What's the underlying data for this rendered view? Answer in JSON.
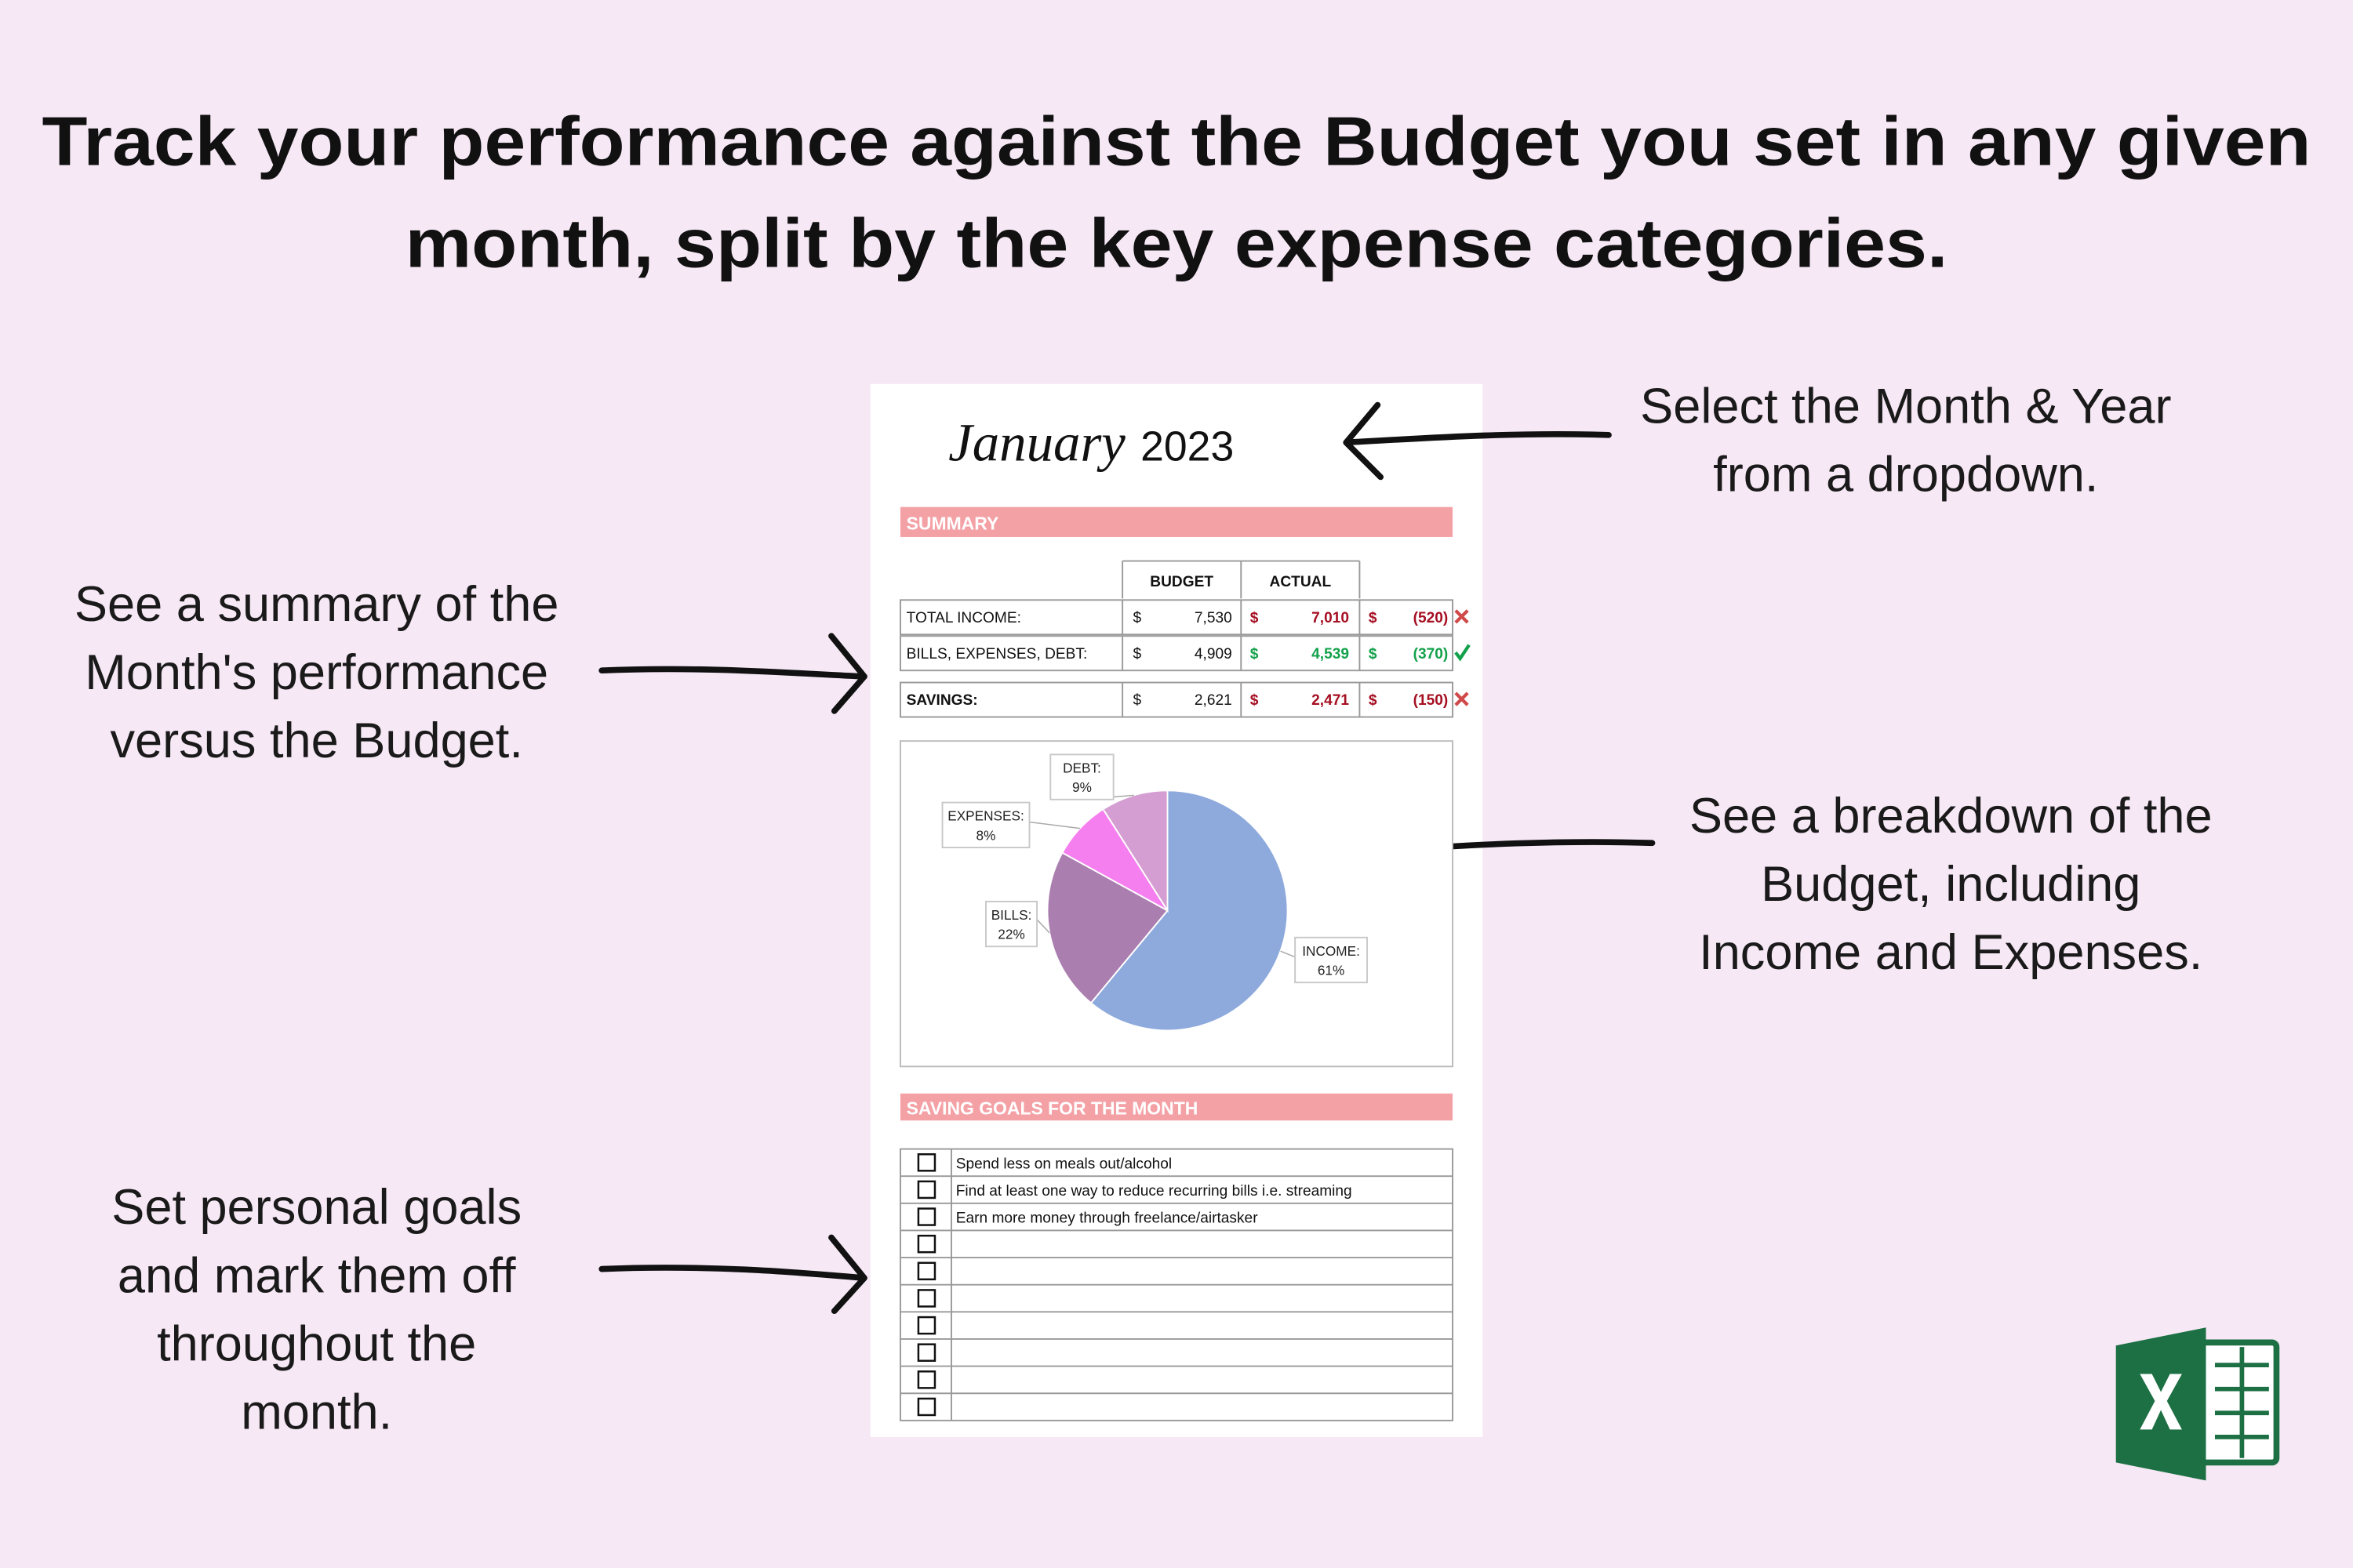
{
  "header": {
    "title_lines": [
      "Track your performance against the Budget you set in any given",
      "month, split by the key expense categories."
    ]
  },
  "callouts": [
    {
      "lines": [
        "Select the Month & Year",
        "from a dropdown."
      ]
    },
    {
      "lines": [
        "See a summary of the",
        "Month's performance",
        "versus the Budget."
      ]
    },
    {
      "lines": [
        "See a breakdown of the",
        "Budget, including",
        "Income and Expenses."
      ]
    },
    {
      "lines": [
        "Set personal goals",
        "and mark them off",
        "throughout the",
        "month."
      ]
    }
  ],
  "sheet": {
    "month": "January",
    "year": "2023",
    "summary": {
      "heading": "SUMMARY",
      "columns": [
        "BUDGET",
        "ACTUAL"
      ],
      "currency": "$",
      "rows": [
        {
          "label": "TOTAL INCOME:",
          "budget": "7,530",
          "actual": "7,010",
          "variance": "(520)",
          "color": "#a50f22"
        },
        {
          "label": "BILLS, EXPENSES, DEBT:",
          "budget": "4,909",
          "actual": "4,539",
          "variance": "(370)",
          "color": "#14a14b"
        },
        {
          "label": "SAVINGS:",
          "budget": "2,621",
          "actual": "2,471",
          "variance": "(150)",
          "color": "#a50f22"
        }
      ]
    },
    "goals": {
      "heading": "SAVING GOALS FOR THE MONTH",
      "items": [
        "Spend less on meals out/alcohol",
        "Find at least one way to reduce recurring bills i.e. streaming",
        "Earn more money through freelance/airtasker"
      ]
    }
  },
  "chart_data": {
    "type": "pie",
    "categories": [
      "INCOME:",
      "BILLS:",
      "EXPENSES:",
      "DEBT:"
    ],
    "values": [
      61,
      22,
      8,
      9
    ],
    "value_labels": [
      "61%",
      "22%",
      "8%",
      "9%"
    ],
    "colors": [
      "#8eaadc",
      "#ab7eb0",
      "#f67ff0",
      "#d59ed2"
    ]
  }
}
